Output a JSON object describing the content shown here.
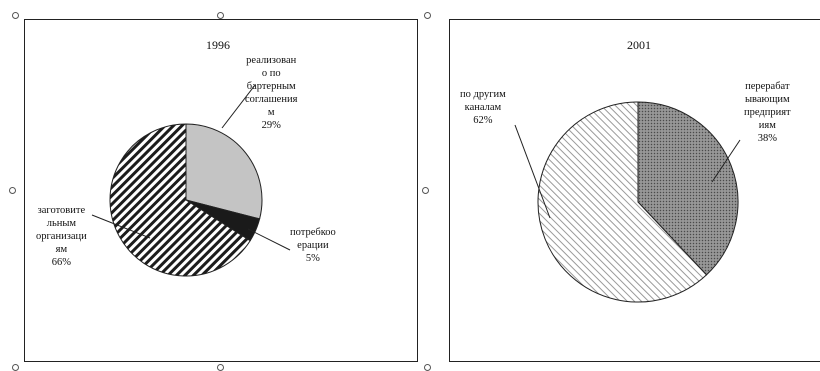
{
  "chart_data": [
    {
      "type": "pie",
      "title": "1996",
      "slices": [
        {
          "name": "реализовано по бартерным соглашениям",
          "label_lines": [
            "реализован",
            "о по",
            "бартерным",
            "соглашения",
            "м"
          ],
          "value": 29,
          "value_label": "29%",
          "fill": "#c4c4c4",
          "pattern": "solid"
        },
        {
          "name": "потребкооперации",
          "label_lines": [
            "потребкоо",
            "ерации"
          ],
          "value": 5,
          "value_label": "5%",
          "fill": "#1a1a1a",
          "pattern": "solid"
        },
        {
          "name": "заготовительным организациям",
          "label_lines": [
            "заготовите",
            "льным",
            "организаци",
            "ям"
          ],
          "value": 66,
          "value_label": "66%",
          "fill": "#ffffff",
          "pattern": "dense-diagonal"
        }
      ]
    },
    {
      "type": "pie",
      "title": "2001",
      "slices": [
        {
          "name": "перерабатывающим предприятиям",
          "label_lines": [
            "перерабат",
            "ывающим",
            "предприят",
            "иям"
          ],
          "value": 38,
          "value_label": "38%",
          "fill": "#777777",
          "pattern": "dotted"
        },
        {
          "name": "по другим каналам",
          "label_lines": [
            "по другим",
            "каналам"
          ],
          "value": 62,
          "value_label": "62%",
          "fill": "#ffffff",
          "pattern": "light-diagonal"
        }
      ]
    }
  ]
}
